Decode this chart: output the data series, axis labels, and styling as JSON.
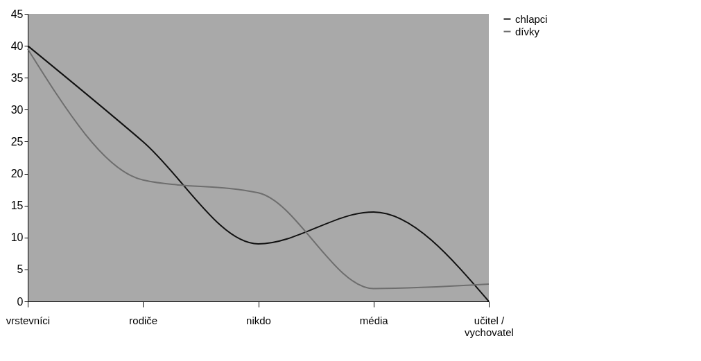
{
  "chart_data": {
    "type": "line",
    "categories": [
      "vrstevníci",
      "rodiče",
      "nikdo",
      "média",
      "učitel / vychovatel"
    ],
    "series": [
      {
        "name": "chlapci",
        "color": "#111111",
        "values": [
          40,
          25,
          9,
          14,
          0
        ]
      },
      {
        "name": "dívky",
        "color": "#6e6e6e",
        "values": [
          39.5,
          19,
          17,
          2,
          2.7
        ]
      }
    ],
    "ylim": [
      0,
      45
    ],
    "yticks": [
      0,
      5,
      10,
      15,
      20,
      25,
      30,
      35,
      40,
      45
    ],
    "grid": false,
    "legend": "right",
    "marker": "none",
    "line_style": "solid"
  }
}
